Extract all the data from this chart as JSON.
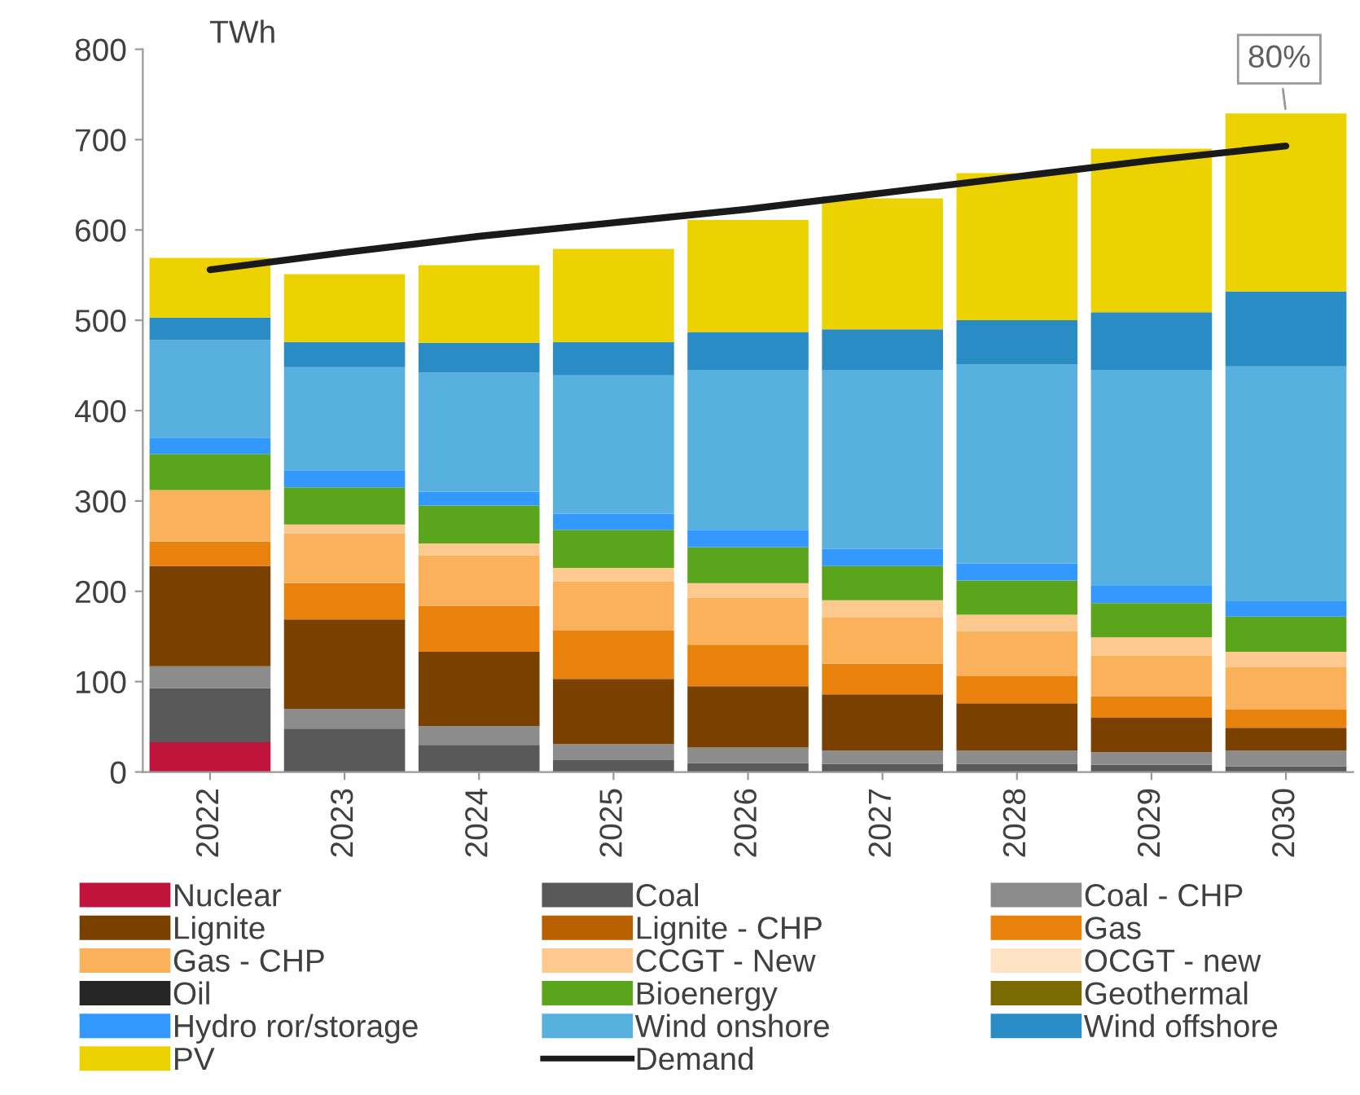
{
  "chart_data": {
    "type": "bar",
    "stacked": true,
    "ylabel": "TWh",
    "categories": [
      "2022",
      "2023",
      "2024",
      "2025",
      "2026",
      "2027",
      "2028",
      "2029",
      "2030"
    ],
    "ylim": [
      0,
      800
    ],
    "yticks": [
      0,
      100,
      200,
      300,
      400,
      500,
      600,
      700,
      800
    ],
    "grid": false,
    "legend": "bottom",
    "annotations": [
      {
        "text": "80%",
        "x": "2030",
        "y": 729
      }
    ],
    "series": [
      {
        "name": "Nuclear",
        "color": "#c0143c",
        "values": [
          33,
          0,
          0,
          0,
          0,
          0,
          0,
          0,
          0
        ]
      },
      {
        "name": "Coal",
        "color": "#595959",
        "values": [
          60,
          48,
          30,
          13,
          10,
          9,
          9,
          8,
          6
        ]
      },
      {
        "name": "Coal - CHP",
        "color": "#8c8c8c",
        "values": [
          24,
          22,
          21,
          18,
          17,
          15,
          15,
          14,
          18
        ]
      },
      {
        "name": "Lignite",
        "color": "#7a4000",
        "values": [
          111,
          99,
          82,
          72,
          68,
          62,
          52,
          38,
          25
        ]
      },
      {
        "name": "Lignite - CHP",
        "color": "#b86000",
        "values": [
          0,
          0,
          0,
          0,
          0,
          0,
          0,
          0,
          0
        ]
      },
      {
        "name": "Gas",
        "color": "#e8820c",
        "values": [
          27,
          40,
          51,
          54,
          46,
          34,
          30,
          24,
          20
        ]
      },
      {
        "name": "Gas - CHP",
        "color": "#fbb05a",
        "values": [
          57,
          55,
          56,
          54,
          52,
          51,
          50,
          45,
          47
        ]
      },
      {
        "name": "CCGT - New",
        "color": "#fdc98e",
        "values": [
          0,
          10,
          13,
          15,
          16,
          19,
          18,
          20,
          17
        ]
      },
      {
        "name": "OCGT - new",
        "color": "#fde2c4",
        "values": [
          0,
          0,
          0,
          0,
          0,
          0,
          0,
          0,
          0
        ]
      },
      {
        "name": "Oil",
        "color": "#262626",
        "values": [
          0,
          0,
          0,
          0,
          0,
          0,
          0,
          0,
          0
        ]
      },
      {
        "name": "Bioenergy",
        "color": "#5aa51c",
        "values": [
          40,
          41,
          42,
          42,
          40,
          38,
          38,
          38,
          39
        ]
      },
      {
        "name": "Geothermal",
        "color": "#7a6a00",
        "values": [
          0,
          0,
          0,
          0,
          0,
          0,
          0,
          0,
          0
        ]
      },
      {
        "name": "Hydro ror/storage",
        "color": "#3399ff",
        "values": [
          18,
          19,
          15,
          18,
          19,
          19,
          19,
          19,
          17
        ]
      },
      {
        "name": "Wind onshore",
        "color": "#58b0de",
        "values": [
          108,
          114,
          132,
          153,
          177,
          198,
          220,
          239,
          260
        ]
      },
      {
        "name": "Wind offshore",
        "color": "#2a8cc4",
        "values": [
          25,
          28,
          33,
          37,
          42,
          45,
          49,
          64,
          83
        ]
      },
      {
        "name": "PV",
        "color": "#ecd200",
        "values": [
          66,
          75,
          86,
          103,
          124,
          145,
          163,
          181,
          197
        ]
      },
      {
        "name": "Demand",
        "color": "#1a1a1a",
        "type": "line",
        "values": [
          556,
          575,
          593,
          608,
          623,
          641,
          659,
          677,
          693
        ]
      }
    ]
  }
}
